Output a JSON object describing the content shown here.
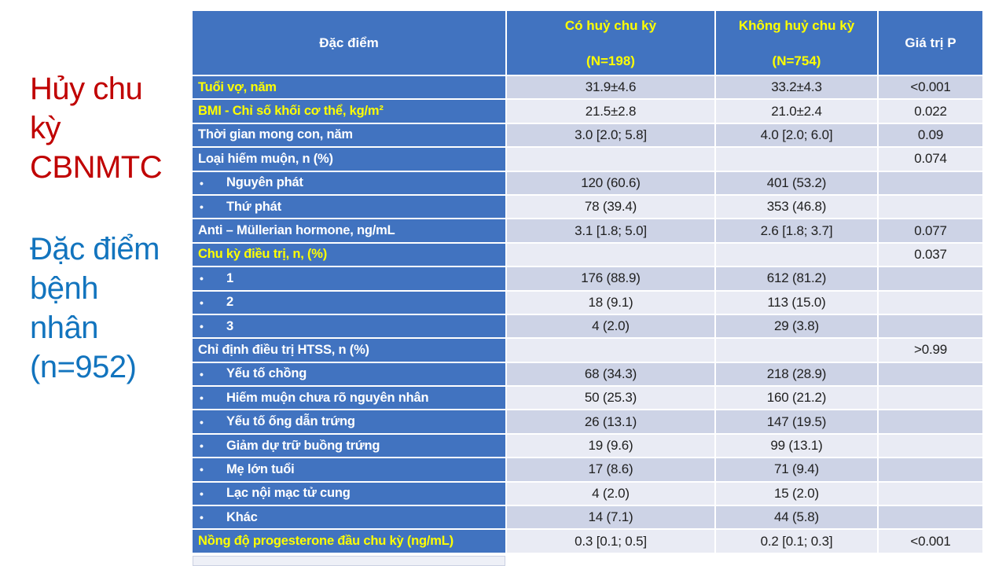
{
  "colors": {
    "table_blue": "#4173C0",
    "stripe_dark": "#CDD3E6",
    "stripe_light": "#E9EBF4",
    "header_highlight_text": "#FFFF00",
    "row_highlight_text": "#FFFF00",
    "title_red": "#C00000",
    "subtitle_blue": "#1274BE",
    "data_text": "#202020"
  },
  "icons": {
    "bullet": "•"
  },
  "left_panel": {
    "title": "Hủy chu\nkỳ\nCBNMTC",
    "subtitle": "Đặc điểm\nbệnh\nnhân\n(n=952)"
  },
  "table": {
    "header": {
      "col1": "Đặc điểm",
      "col2_line1": "Có huỷ chu kỳ",
      "col2_line2": "(N=198)",
      "col3_line1": "Không huỷ chu kỳ",
      "col3_line2": "(N=754)",
      "col4": "Giá trị P"
    },
    "rows": [
      {
        "label": "Tuổi vợ, năm",
        "highlight": true,
        "bullet": false,
        "v1": "31.9±4.6",
        "v2": "33.2±4.3",
        "p": "<0.001"
      },
      {
        "label": "BMI - Chỉ số khối cơ thể, kg/m²",
        "highlight": true,
        "bullet": false,
        "v1": "21.5±2.8",
        "v2": "21.0±2.4",
        "p": "0.022"
      },
      {
        "label": "Thời gian mong con, năm",
        "highlight": false,
        "bullet": false,
        "v1": "3.0 [2.0; 5.8]",
        "v2": "4.0 [2.0; 6.0]",
        "p": "0.09"
      },
      {
        "label": "Loại hiếm muộn, n (%)",
        "highlight": false,
        "bullet": false,
        "v1": "",
        "v2": "",
        "p": "0.074"
      },
      {
        "label": "Nguyên phát",
        "highlight": false,
        "bullet": true,
        "v1": "120 (60.6)",
        "v2": "401 (53.2)",
        "p": ""
      },
      {
        "label": "Thứ phát",
        "highlight": false,
        "bullet": true,
        "v1": "78 (39.4)",
        "v2": "353 (46.8)",
        "p": ""
      },
      {
        "label": "Anti – Müllerian hormone, ng/mL",
        "highlight": false,
        "bullet": false,
        "v1": "3.1 [1.8; 5.0]",
        "v2": "2.6 [1.8; 3.7]",
        "p": "0.077"
      },
      {
        "label": "Chu kỳ điều trị, n, (%)",
        "highlight": true,
        "bullet": false,
        "v1": "",
        "v2": "",
        "p": "0.037"
      },
      {
        "label": "1",
        "highlight": false,
        "bullet": true,
        "v1": "176 (88.9)",
        "v2": "612 (81.2)",
        "p": ""
      },
      {
        "label": "2",
        "highlight": false,
        "bullet": true,
        "v1": "18 (9.1)",
        "v2": "113 (15.0)",
        "p": ""
      },
      {
        "label": "3",
        "highlight": false,
        "bullet": true,
        "v1": "4 (2.0)",
        "v2": "29 (3.8)",
        "p": ""
      },
      {
        "label": "Chỉ định điều trị HTSS, n (%)",
        "highlight": false,
        "bullet": false,
        "v1": "",
        "v2": "",
        "p": ">0.99"
      },
      {
        "label": "Yếu tố chồng",
        "highlight": false,
        "bullet": true,
        "v1": "68 (34.3)",
        "v2": "218 (28.9)",
        "p": ""
      },
      {
        "label": "Hiếm muộn chưa rõ nguyên nhân",
        "highlight": false,
        "bullet": true,
        "v1": "50 (25.3)",
        "v2": "160 (21.2)",
        "p": ""
      },
      {
        "label": "Yếu tố ống dẫn trứng",
        "highlight": false,
        "bullet": true,
        "v1": "26 (13.1)",
        "v2": "147 (19.5)",
        "p": ""
      },
      {
        "label": "Giảm dự trữ buồng trứng",
        "highlight": false,
        "bullet": true,
        "v1": "19 (9.6)",
        "v2": "99 (13.1)",
        "p": ""
      },
      {
        "label": "Mẹ lớn tuổi",
        "highlight": false,
        "bullet": true,
        "v1": "17 (8.6)",
        "v2": "71 (9.4)",
        "p": ""
      },
      {
        "label": "Lạc nội mạc tử cung",
        "highlight": false,
        "bullet": true,
        "v1": "4 (2.0)",
        "v2": "15 (2.0)",
        "p": ""
      },
      {
        "label": "Khác",
        "highlight": false,
        "bullet": true,
        "v1": "14 (7.1)",
        "v2": "44 (5.8)",
        "p": ""
      },
      {
        "label": "Nồng độ progesterone đầu chu kỳ (ng/mL)",
        "highlight": true,
        "bullet": false,
        "v1": "0.3 [0.1; 0.5]",
        "v2": "0.2 [0.1; 0.3]",
        "p": "<0.001"
      }
    ]
  }
}
